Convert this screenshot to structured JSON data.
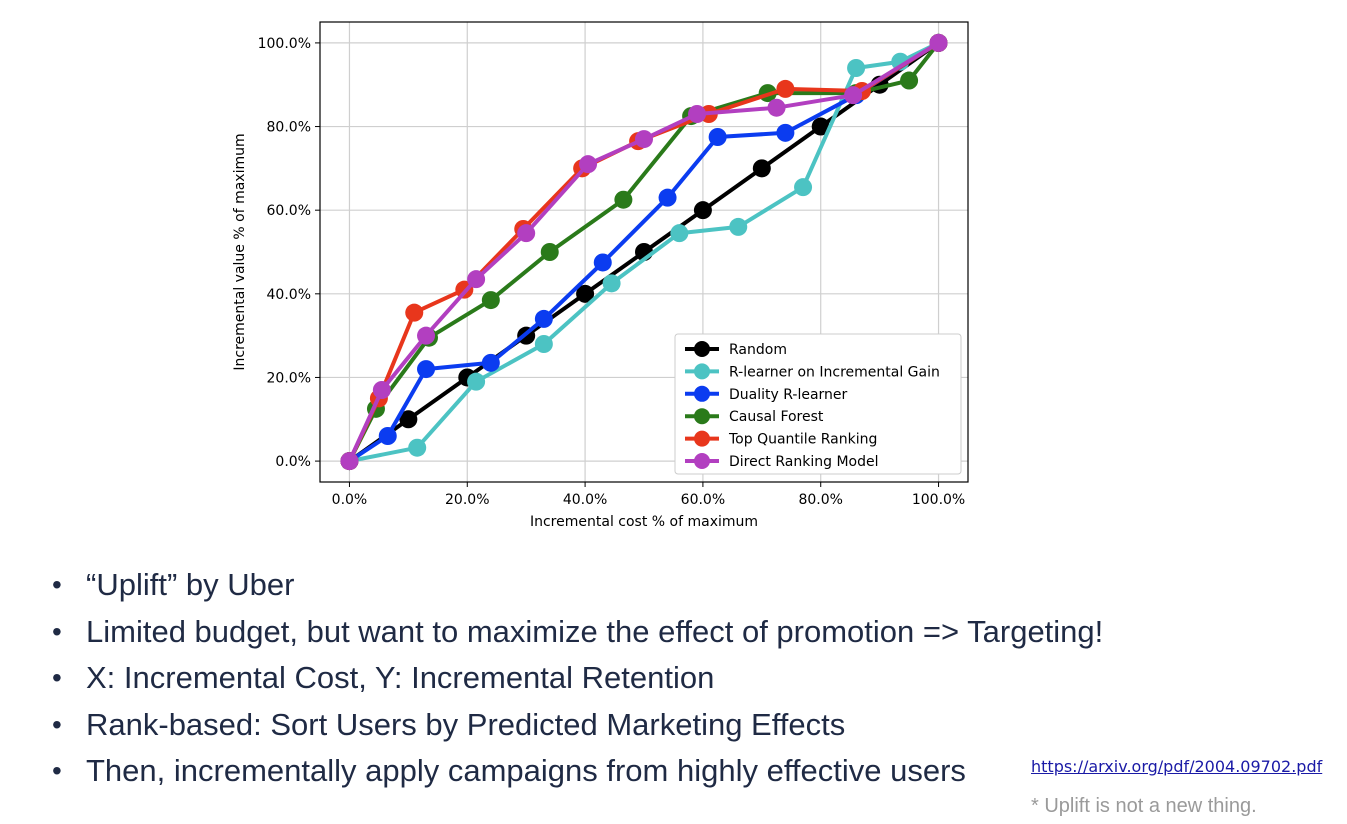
{
  "chart_data": {
    "type": "line",
    "title": "",
    "xlabel": "Incremental cost % of maximum",
    "ylabel": "Incremental value % of maximum",
    "xlim": [
      -5,
      105
    ],
    "ylim": [
      -5,
      105
    ],
    "xticks": [
      0,
      20,
      40,
      60,
      80,
      100
    ],
    "yticks": [
      0,
      20,
      40,
      60,
      80,
      100
    ],
    "xtick_labels": [
      "0.0%",
      "20.0%",
      "40.0%",
      "60.0%",
      "80.0%",
      "100.0%"
    ],
    "ytick_labels": [
      "0.0%",
      "20.0%",
      "40.0%",
      "60.0%",
      "80.0%",
      "100.0%"
    ],
    "grid": true,
    "legend_position": "bottom-right",
    "series": [
      {
        "name": "Random",
        "color": "#000000",
        "x": [
          0,
          10,
          20,
          30,
          40,
          50,
          60,
          70,
          80,
          90,
          100
        ],
        "y": [
          0,
          10,
          20,
          30,
          40,
          50,
          60,
          70,
          80,
          90,
          100
        ]
      },
      {
        "name": "R-learner on Incremental Gain",
        "color": "#4cc3c3",
        "x": [
          0,
          11.5,
          21.5,
          33,
          44.5,
          56,
          66,
          77,
          86,
          93.5,
          100
        ],
        "y": [
          0,
          3.2,
          19,
          28,
          42.5,
          54.5,
          56,
          65.5,
          94,
          95.5,
          100
        ]
      },
      {
        "name": "Duality R-learner",
        "color": "#0b3cf0",
        "x": [
          0,
          6.5,
          13,
          24,
          33,
          43,
          54,
          62.5,
          74,
          86,
          100
        ],
        "y": [
          0,
          6,
          22,
          23.5,
          34,
          47.5,
          63,
          77.5,
          78.5,
          87.5,
          100
        ]
      },
      {
        "name": "Causal Forest",
        "color": "#2a7a1a",
        "x": [
          0,
          4.5,
          13.5,
          24,
          34,
          46.5,
          58,
          71,
          86,
          95,
          100
        ],
        "y": [
          0,
          12.5,
          29.5,
          38.5,
          50,
          62.5,
          82.5,
          88,
          88,
          91,
          100
        ]
      },
      {
        "name": "Top Quantile Ranking",
        "color": "#e8361c",
        "x": [
          0,
          5,
          11,
          19.5,
          29.5,
          39.5,
          49,
          61,
          74,
          87,
          100
        ],
        "y": [
          0,
          15,
          35.5,
          41,
          55.5,
          70,
          76.5,
          83,
          89,
          88.5,
          100
        ]
      },
      {
        "name": "Direct Ranking Model",
        "color": "#b23fc0",
        "x": [
          0,
          5.5,
          13,
          21.5,
          30,
          40.5,
          50,
          59,
          72.5,
          85.5,
          100
        ],
        "y": [
          0,
          17,
          30,
          43.5,
          54.5,
          71,
          77,
          83,
          84.5,
          87.5,
          100
        ]
      }
    ]
  },
  "bullets": [
    {
      "marker": "•",
      "text": "“Uplift” by Uber"
    },
    {
      "marker": "•",
      "text": "Limited budget, but want to maximize the effect of promotion => Targeting!"
    },
    {
      "marker": "•",
      "text": "X: Incremental Cost, Y: Incremental Retention"
    },
    {
      "marker": "•",
      "text": "Rank-based: Sort Users by Predicted Marketing Effects"
    },
    {
      "marker": "•",
      "text": "Then, incrementally apply campaigns from highly effective users"
    }
  ],
  "reference_link": "https://arxiv.org/pdf/2004.09702.pdf",
  "footnote": "* Uplift is not a new thing."
}
